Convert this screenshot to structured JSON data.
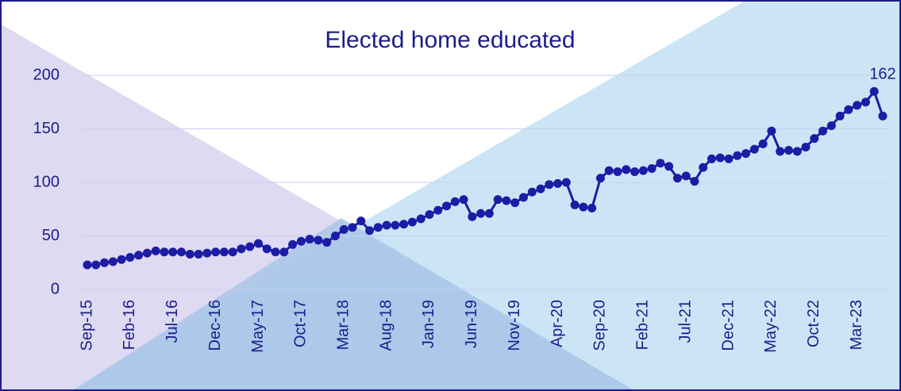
{
  "chart_data": {
    "type": "line",
    "title": "Elected home educated",
    "categories": [
      "Sep-15",
      null,
      null,
      null,
      null,
      "Feb-16",
      null,
      null,
      null,
      null,
      "Jul-16",
      null,
      null,
      null,
      null,
      "Dec-16",
      null,
      null,
      null,
      null,
      "May-17",
      null,
      null,
      null,
      null,
      "Oct-17",
      null,
      null,
      null,
      null,
      "Mar-18",
      null,
      null,
      null,
      null,
      "Aug-18",
      null,
      null,
      null,
      null,
      "Jan-19",
      null,
      null,
      null,
      null,
      "Jun-19",
      null,
      null,
      null,
      null,
      "Nov-19",
      null,
      null,
      null,
      null,
      "Apr-20",
      null,
      null,
      null,
      null,
      "Sep-20",
      null,
      null,
      null,
      null,
      "Feb-21",
      null,
      null,
      null,
      null,
      "Jul-21",
      null,
      null,
      null,
      null,
      "Dec-21",
      null,
      null,
      null,
      null,
      "May-22",
      null,
      null,
      null,
      null,
      "Oct-22",
      null,
      null,
      null,
      null,
      "Mar-23",
      null,
      null,
      null
    ],
    "values": [
      23,
      23,
      25,
      26,
      28,
      30,
      32,
      34,
      36,
      35,
      35,
      35,
      33,
      33,
      34,
      35,
      35,
      35,
      38,
      40,
      43,
      38,
      35,
      35,
      42,
      45,
      47,
      46,
      44,
      50,
      56,
      58,
      64,
      55,
      58,
      60,
      60,
      61,
      63,
      66,
      70,
      74,
      78,
      82,
      84,
      68,
      71,
      71,
      84,
      83,
      81,
      86,
      91,
      94,
      98,
      99,
      100,
      79,
      77,
      76,
      104,
      111,
      110,
      112,
      110,
      111,
      113,
      118,
      115,
      104,
      106,
      101,
      114,
      122,
      123,
      122,
      125,
      127,
      131,
      136,
      148,
      129,
      130,
      129,
      133,
      141,
      148,
      153,
      162,
      168,
      172,
      175,
      185,
      162
    ],
    "color": "#1c1ca6",
    "ylim": [
      0,
      200
    ],
    "yticks": [
      0,
      50,
      100,
      150,
      200
    ],
    "grid": true
  }
}
